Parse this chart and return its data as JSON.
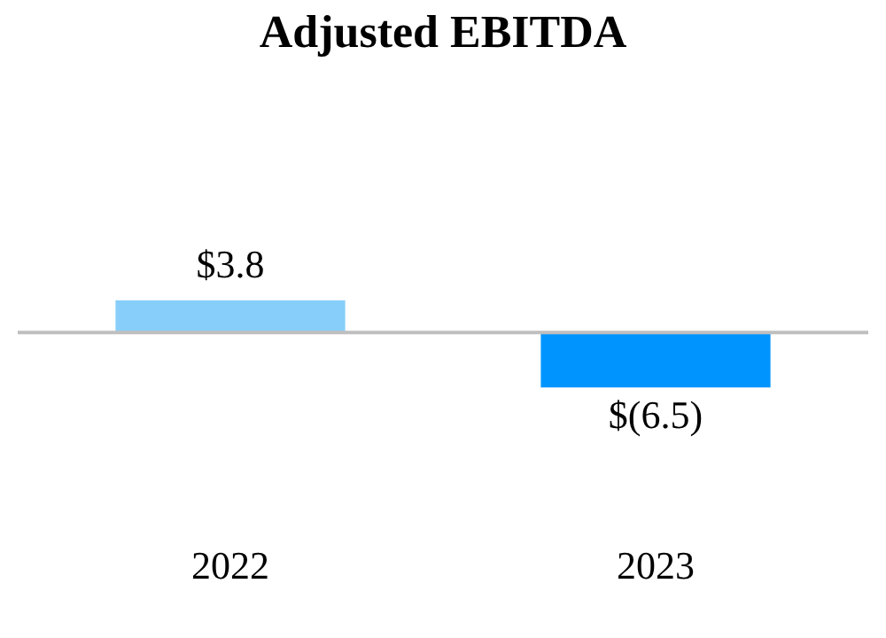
{
  "chart_data": {
    "type": "bar",
    "title": "Adjusted EBITDA",
    "categories": [
      "2022",
      "2023"
    ],
    "values": [
      3.8,
      -6.5
    ],
    "colors": [
      "#87cefa",
      "#0094ff"
    ],
    "value_labels": [
      "$3.8",
      "$(6.5)"
    ]
  }
}
